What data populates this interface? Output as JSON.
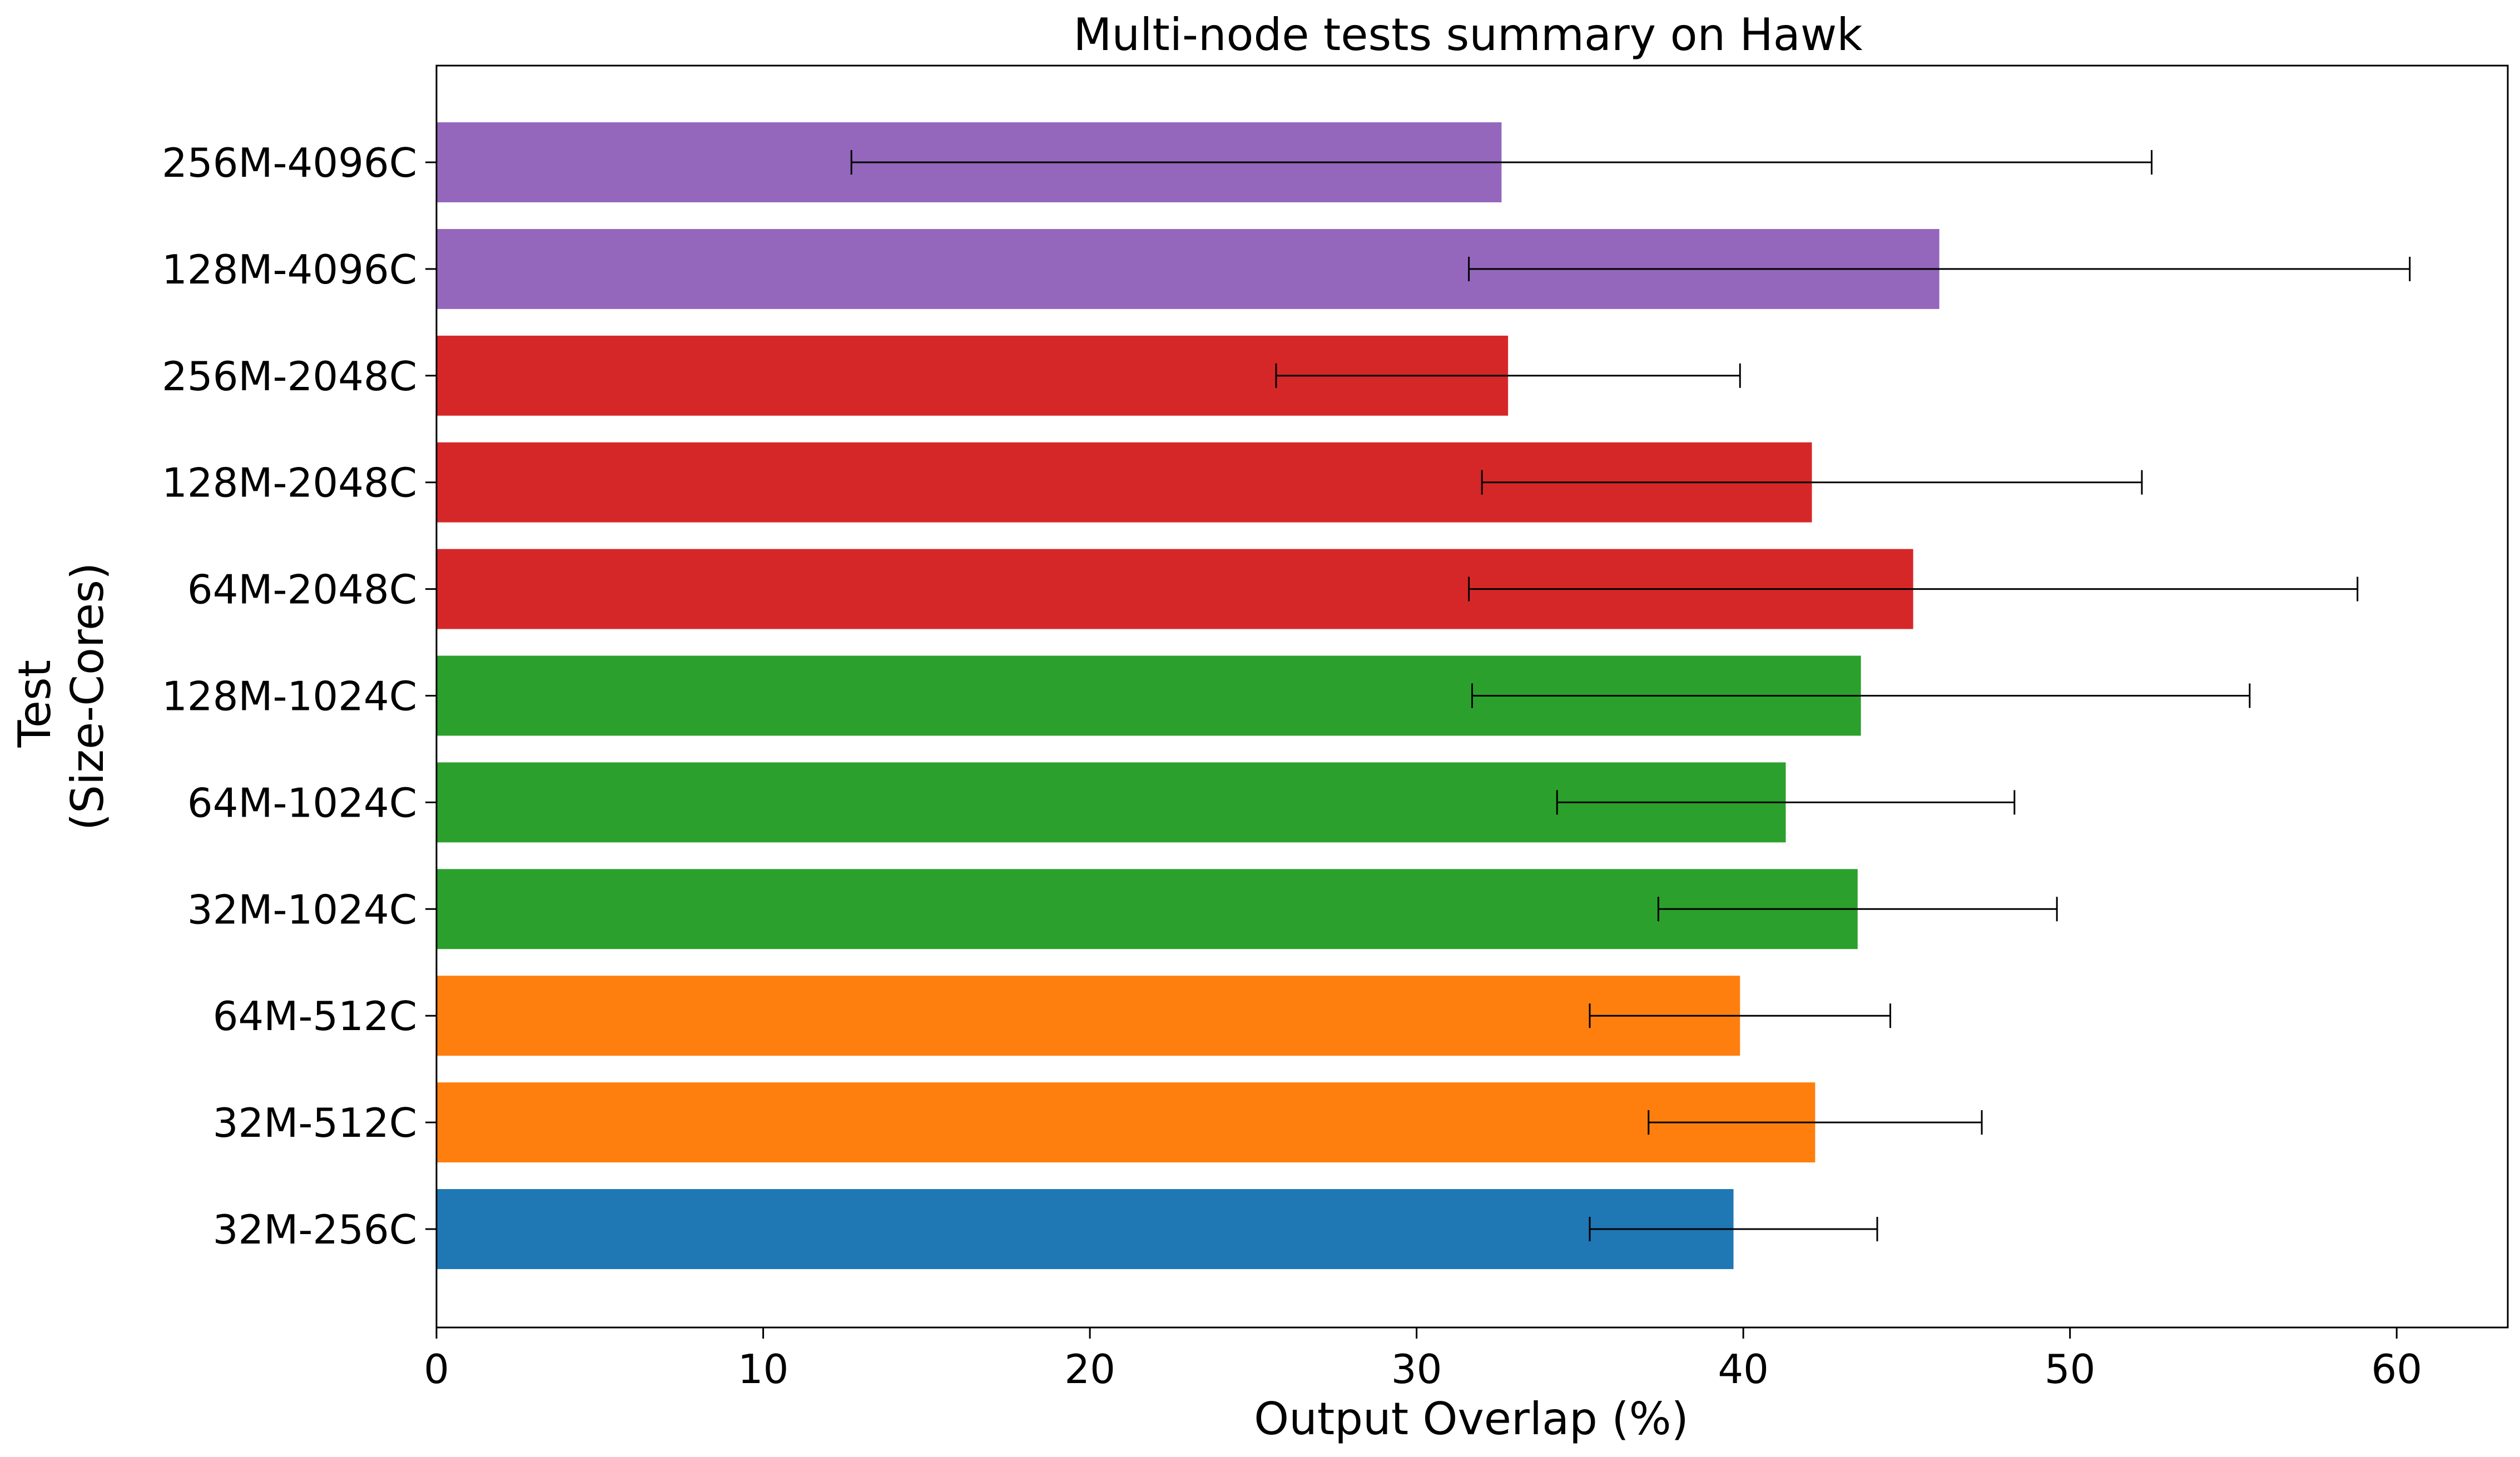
{
  "chart_data": {
    "type": "bar",
    "orientation": "horizontal",
    "title": "Multi-node tests summary on Hawk",
    "xlabel": "Output Overlap (%)",
    "ylabel_lines": [
      "Test",
      "(Size-Cores)"
    ],
    "xlim": [
      0,
      63.4
    ],
    "xticks": [
      0,
      10,
      20,
      30,
      40,
      50,
      60
    ],
    "grid": false,
    "legend": "none",
    "categories": [
      "32M-256C",
      "32M-512C",
      "64M-512C",
      "32M-1024C",
      "64M-1024C",
      "128M-1024C",
      "64M-2048C",
      "128M-2048C",
      "256M-2048C",
      "128M-4096C",
      "256M-4096C"
    ],
    "values": [
      39.7,
      42.2,
      39.9,
      43.5,
      41.3,
      43.6,
      45.2,
      42.1,
      32.8,
      46.0,
      32.6
    ],
    "errors": [
      4.4,
      5.1,
      4.6,
      6.1,
      7.0,
      11.9,
      13.6,
      10.1,
      7.1,
      14.4,
      19.9
    ],
    "bar_colors": [
      "#1f77b4",
      "#ff7f0e",
      "#ff7f0e",
      "#2ca02c",
      "#2ca02c",
      "#2ca02c",
      "#d62728",
      "#d62728",
      "#d62728",
      "#9467bd",
      "#9467bd"
    ]
  }
}
